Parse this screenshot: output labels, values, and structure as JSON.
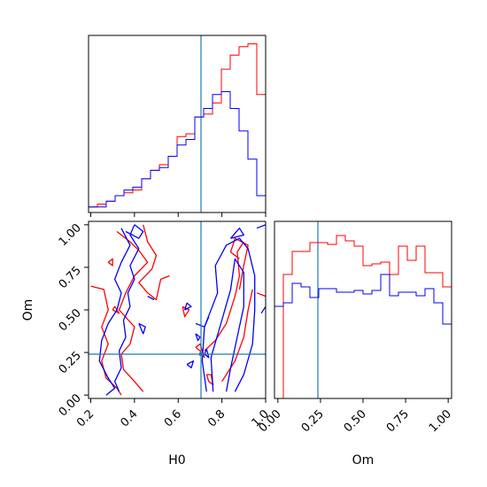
{
  "colors": {
    "series_red": "#ff0000",
    "series_blue": "#0000ff",
    "truth": "#1f77b4",
    "axis": "#000000"
  },
  "chart_data": {
    "type": "corner",
    "parameters": [
      "H0",
      "Om"
    ],
    "truths": {
      "H0": 0.71,
      "Om": 0.24
    },
    "panels": [
      {
        "id": "H0_hist",
        "type": "histogram",
        "x_range": [
          0.19,
          1.0
        ],
        "bin_edges": [
          0.19,
          0.2305,
          0.271,
          0.3115,
          0.352,
          0.3925,
          0.433,
          0.4735,
          0.514,
          0.5545,
          0.595,
          0.6355,
          0.676,
          0.7165,
          0.757,
          0.7975,
          0.838,
          0.8785,
          0.919,
          0.9595,
          1.0
        ],
        "series": [
          {
            "color_key": "series_red",
            "counts": [
              1,
              1.5,
              2,
              3,
              3.5,
              4,
              6,
              7.5,
              8.5,
              10,
              13.5,
              14,
              17,
              17.5,
              19.5,
              25.5,
              28,
              29.5,
              30,
              21
            ]
          },
          {
            "color_key": "series_blue",
            "counts": [
              1,
              1,
              2,
              3,
              4,
              4.5,
              6,
              7.5,
              8,
              10,
              12,
              13,
              17,
              18.5,
              21,
              21.5,
              18.5,
              14.5,
              9.5,
              3
            ]
          }
        ],
        "xticks": [
          0.2,
          0.4,
          0.6,
          0.8,
          1.0
        ],
        "show_tick_labels": false
      },
      {
        "id": "Om_hist",
        "type": "histogram",
        "x_range": [
          -0.02,
          1.02
        ],
        "bin_edges": [
          -0.02,
          0.032,
          0.084,
          0.136,
          0.188,
          0.24,
          0.292,
          0.344,
          0.396,
          0.448,
          0.5,
          0.552,
          0.604,
          0.656,
          0.708,
          0.76,
          0.812,
          0.864,
          0.916,
          0.968,
          1.02
        ],
        "series": [
          {
            "color_key": "series_red",
            "counts": [
              0.0,
              0.7,
              0.83,
              0.83,
              0.88,
              0.88,
              0.87,
              0.92,
              0.89,
              0.86,
              0.75,
              0.76,
              0.77,
              0.7,
              0.86,
              0.78,
              0.86,
              0.71,
              0.71,
              0.63
            ]
          },
          {
            "color_key": "series_blue",
            "counts": [
              0.52,
              0.54,
              0.65,
              0.63,
              0.57,
              0.62,
              0.62,
              0.6,
              0.6,
              0.61,
              0.59,
              0.61,
              0.7,
              0.58,
              0.6,
              0.6,
              0.58,
              0.62,
              0.54,
              0.42
            ]
          }
        ],
        "xlabel": "Om",
        "xticks": [
          0.0,
          0.25,
          0.5,
          0.75,
          1.0
        ],
        "xtick_labels": [
          "0.00",
          "0.25",
          "0.50",
          "0.75",
          "1.00"
        ]
      },
      {
        "id": "H0_Om_contour",
        "type": "contour",
        "x_range": [
          0.19,
          1.0
        ],
        "y_range": [
          -0.02,
          1.02
        ],
        "xlabel": "H0",
        "ylabel": "Om",
        "xticks": [
          0.2,
          0.4,
          0.6,
          0.8,
          1.0
        ],
        "xtick_labels": [
          "0.2",
          "0.4",
          "0.6",
          "0.8",
          "1.0"
        ],
        "yticks": [
          0.0,
          0.25,
          0.5,
          0.75,
          1.0
        ],
        "ytick_labels": [
          "0.00",
          "0.25",
          "0.50",
          "0.75",
          "1.00"
        ],
        "series": [
          {
            "color_key": "series_red",
            "paths": [
              [
                [
                  0.2,
                  0.64
                ],
                [
                  0.26,
                  0.62
                ],
                [
                  0.28,
                  0.5
                ],
                [
                  0.25,
                  0.4
                ],
                [
                  0.28,
                  0.3
                ],
                [
                  0.25,
                  0.2
                ],
                [
                  0.27,
                  0.1
                ],
                [
                  0.32,
                  0.04
                ],
                [
                  0.34,
                  0.0
                ]
              ],
              [
                [
                  0.32,
                  0.96
                ],
                [
                  0.38,
                  0.9
                ],
                [
                  0.42,
                  0.85
                ],
                [
                  0.46,
                  0.78
                ],
                [
                  0.4,
                  0.7
                ],
                [
                  0.36,
                  0.6
                ],
                [
                  0.33,
                  0.5
                ],
                [
                  0.4,
                  0.4
                ],
                [
                  0.38,
                  0.3
                ],
                [
                  0.34,
                  0.24
                ],
                [
                  0.35,
                  0.15
                ],
                [
                  0.4,
                  0.08
                ],
                [
                  0.44,
                  0.02
                ]
              ],
              [
                [
                  0.44,
                  1.0
                ],
                [
                  0.46,
                  0.9
                ],
                [
                  0.5,
                  0.82
                ],
                [
                  0.48,
                  0.74
                ],
                [
                  0.42,
                  0.66
                ],
                [
                  0.46,
                  0.6
                ],
                [
                  0.5,
                  0.56
                ],
                [
                  0.52,
                  0.68
                ],
                [
                  0.56,
                  0.7
                ]
              ],
              [
                [
                  0.28,
                  0.78
                ],
                [
                  0.3,
                  0.8
                ],
                [
                  0.3,
                  0.76
                ],
                [
                  0.28,
                  0.78
                ]
              ],
              [
                [
                  0.3,
                  0.5
                ],
                [
                  0.33,
                  0.48
                ],
                [
                  0.31,
                  0.52
                ],
                [
                  0.3,
                  0.5
                ]
              ],
              [
                [
                  0.62,
                  0.52
                ],
                [
                  0.65,
                  0.5
                ],
                [
                  0.63,
                  0.46
                ],
                [
                  0.62,
                  0.52
                ]
              ],
              [
                [
                  0.68,
                  0.28
                ],
                [
                  0.7,
                  0.26
                ],
                [
                  0.72,
                  0.22
                ],
                [
                  0.7,
                  0.3
                ],
                [
                  0.68,
                  0.28
                ]
              ],
              [
                [
                  0.73,
                  0.12
                ],
                [
                  0.74,
                  0.08
                ],
                [
                  0.76,
                  0.06
                ],
                [
                  0.75,
                  0.12
                ],
                [
                  0.73,
                  0.12
                ]
              ],
              [
                [
                  0.72,
                  0.26
                ],
                [
                  0.77,
                  0.32
                ],
                [
                  0.82,
                  0.42
                ],
                [
                  0.86,
                  0.58
                ],
                [
                  0.88,
                  0.7
                ],
                [
                  0.87,
                  0.84
                ],
                [
                  0.9,
                  0.9
                ]
              ],
              [
                [
                  0.88,
                  0.62
                ],
                [
                  0.9,
                  0.76
                ],
                [
                  0.92,
                  0.88
                ],
                [
                  0.86,
                  0.92
                ],
                [
                  0.84,
                  0.84
                ],
                [
                  0.88,
                  0.8
                ]
              ],
              [
                [
                  0.8,
                  0.08
                ],
                [
                  0.86,
                  0.2
                ],
                [
                  0.9,
                  0.34
                ],
                [
                  0.92,
                  0.5
                ],
                [
                  0.94,
                  0.62
                ]
              ],
              [
                [
                  0.96,
                  0.6
                ],
                [
                  1.0,
                  0.58
                ]
              ]
            ]
          },
          {
            "color_key": "series_blue",
            "paths": [
              [
                [
                  0.34,
                  0.98
                ],
                [
                  0.38,
                  0.88
                ],
                [
                  0.34,
                  0.78
                ],
                [
                  0.31,
                  0.68
                ],
                [
                  0.34,
                  0.6
                ],
                [
                  0.32,
                  0.5
                ],
                [
                  0.28,
                  0.42
                ],
                [
                  0.25,
                  0.32
                ],
                [
                  0.24,
                  0.2
                ],
                [
                  0.28,
                  0.1
                ],
                [
                  0.31,
                  0.04
                ],
                [
                  0.27,
                  0.0
                ]
              ],
              [
                [
                  0.4,
                  1.0
                ],
                [
                  0.38,
                  0.94
                ],
                [
                  0.42,
                  0.86
                ],
                [
                  0.38,
                  0.76
                ],
                [
                  0.4,
                  0.68
                ],
                [
                  0.37,
                  0.6
                ],
                [
                  0.38,
                  0.52
                ],
                [
                  0.35,
                  0.44
                ],
                [
                  0.36,
                  0.34
                ],
                [
                  0.33,
                  0.26
                ],
                [
                  0.34,
                  0.16
                ],
                [
                  0.31,
                  0.08
                ],
                [
                  0.33,
                  0.02
                ]
              ],
              [
                [
                  0.36,
                  0.96
                ],
                [
                  0.42,
                  0.92
                ],
                [
                  0.44,
                  0.96
                ],
                [
                  0.4,
                  1.0
                ]
              ],
              [
                [
                  0.42,
                  0.42
                ],
                [
                  0.45,
                  0.4
                ],
                [
                  0.44,
                  0.36
                ],
                [
                  0.42,
                  0.42
                ]
              ],
              [
                [
                  0.46,
                  0.58
                ],
                [
                  0.49,
                  0.56
                ]
              ],
              [
                [
                  0.63,
                  0.5
                ],
                [
                  0.66,
                  0.52
                ],
                [
                  0.64,
                  0.54
                ],
                [
                  0.63,
                  0.5
                ]
              ],
              [
                [
                  0.68,
                  0.36
                ],
                [
                  0.69,
                  0.32
                ],
                [
                  0.7,
                  0.34
                ],
                [
                  0.68,
                  0.36
                ]
              ],
              [
                [
                  0.64,
                  0.18
                ],
                [
                  0.66,
                  0.16
                ],
                [
                  0.67,
                  0.2
                ],
                [
                  0.64,
                  0.18
                ]
              ],
              [
                [
                  0.68,
                  0.42
                ],
                [
                  0.72,
                  0.4
                ],
                [
                  0.74,
                  0.46
                ]
              ],
              [
                [
                  0.73,
                  0.02
                ],
                [
                  0.71,
                  0.2
                ],
                [
                  0.72,
                  0.4
                ],
                [
                  0.78,
                  0.6
                ],
                [
                  0.77,
                  0.76
                ],
                [
                  0.82,
                  0.88
                ],
                [
                  0.88,
                  0.92
                ],
                [
                  0.92,
                  0.86
                ],
                [
                  0.95,
                  0.7
                ],
                [
                  0.95,
                  0.5
                ],
                [
                  0.94,
                  0.3
                ],
                [
                  0.9,
                  0.12
                ],
                [
                  0.86,
                  0.02
                ]
              ],
              [
                [
                  0.76,
                  0.02
                ],
                [
                  0.75,
                  0.22
                ],
                [
                  0.8,
                  0.44
                ],
                [
                  0.84,
                  0.62
                ],
                [
                  0.86,
                  0.8
                ],
                [
                  0.9,
                  0.72
                ],
                [
                  0.9,
                  0.52
                ],
                [
                  0.87,
                  0.34
                ],
                [
                  0.84,
                  0.16
                ],
                [
                  0.82,
                  0.02
                ]
              ],
              [
                [
                  0.84,
                  0.92
                ],
                [
                  0.88,
                  0.98
                ],
                [
                  0.9,
                  0.94
                ],
                [
                  0.84,
                  0.92
                ]
              ],
              [
                [
                  0.72,
                  0.24
                ],
                [
                  0.74,
                  0.22
                ],
                [
                  0.73,
                  0.27
                ],
                [
                  0.72,
                  0.24
                ]
              ],
              [
                [
                  0.98,
                  0.48
                ],
                [
                  1.0,
                  0.52
                ]
              ],
              [
                [
                  0.96,
                  0.98
                ],
                [
                  1.0,
                  1.0
                ]
              ]
            ]
          }
        ]
      }
    ]
  }
}
